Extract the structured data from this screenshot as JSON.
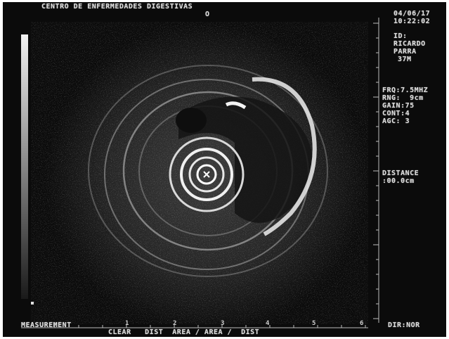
{
  "header": {
    "institution": "CENTRO DE ENFERMEDADES DIGESTIVAS",
    "marker": "O"
  },
  "info": {
    "date": "04/06/17",
    "time": "10:22:02",
    "id_label": "ID:",
    "name_line1": "RICARDO",
    "name_line2": "PARRA",
    "side": "37M"
  },
  "settings": {
    "frq": "FRQ:7.5MHZ",
    "range": "RNG:  9cm",
    "gain": "GAIN:75",
    "cont": "CONT:4",
    "agc": "AGC: 3"
  },
  "measure": {
    "distance_label": "DISTANCE",
    "distance_value": ":00.0cm"
  },
  "footer": {
    "measurement": "MEASUREMENT",
    "modes": "CLEAR   DIST  AREA / AREA /  DIST",
    "direction": "DIR:NOR",
    "ticks": [
      "1",
      "2",
      "3",
      "4",
      "5",
      "6"
    ]
  },
  "colors": {
    "background": "#0b0b0b",
    "text": "#dcdcdc",
    "echo": "#e8e8e8"
  }
}
